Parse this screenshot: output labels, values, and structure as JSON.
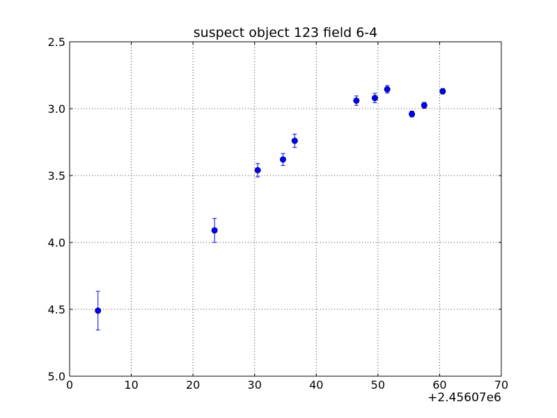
{
  "chart_data": {
    "type": "scatter",
    "title": "suspect object 123 field 6-4",
    "xlabel": "",
    "ylabel": "",
    "x_offset_label": "+2.45607e6",
    "xlim": [
      0,
      70
    ],
    "ylim": [
      2.5,
      5.0
    ],
    "y_inverted": true,
    "grid": true,
    "x_ticks": [
      0,
      10,
      20,
      30,
      40,
      50,
      60,
      70
    ],
    "x_tick_labels": [
      "0",
      "10",
      "20",
      "30",
      "40",
      "50",
      "60",
      "70"
    ],
    "y_ticks": [
      2.5,
      3.0,
      3.5,
      4.0,
      4.5,
      5.0
    ],
    "y_tick_labels": [
      "2.5",
      "3.0",
      "3.5",
      "4.0",
      "4.5",
      "5.0"
    ],
    "marker_color": "#0000ff",
    "errorbar_color": "#0000ff",
    "series": [
      {
        "points": [
          {
            "x": 4.6,
            "y": 4.51,
            "err": 0.145
          },
          {
            "x": 23.5,
            "y": 3.91,
            "err": 0.09
          },
          {
            "x": 30.5,
            "y": 3.46,
            "err": 0.05
          },
          {
            "x": 34.6,
            "y": 3.38,
            "err": 0.045
          },
          {
            "x": 36.5,
            "y": 3.24,
            "err": 0.05
          },
          {
            "x": 46.5,
            "y": 2.94,
            "err": 0.035
          },
          {
            "x": 49.5,
            "y": 2.92,
            "err": 0.035
          },
          {
            "x": 51.5,
            "y": 2.855,
            "err": 0.028
          },
          {
            "x": 55.5,
            "y": 3.04,
            "err": 0.022
          },
          {
            "x": 57.5,
            "y": 2.975,
            "err": 0.022
          },
          {
            "x": 60.5,
            "y": 2.87,
            "err": 0.02
          }
        ]
      }
    ]
  }
}
